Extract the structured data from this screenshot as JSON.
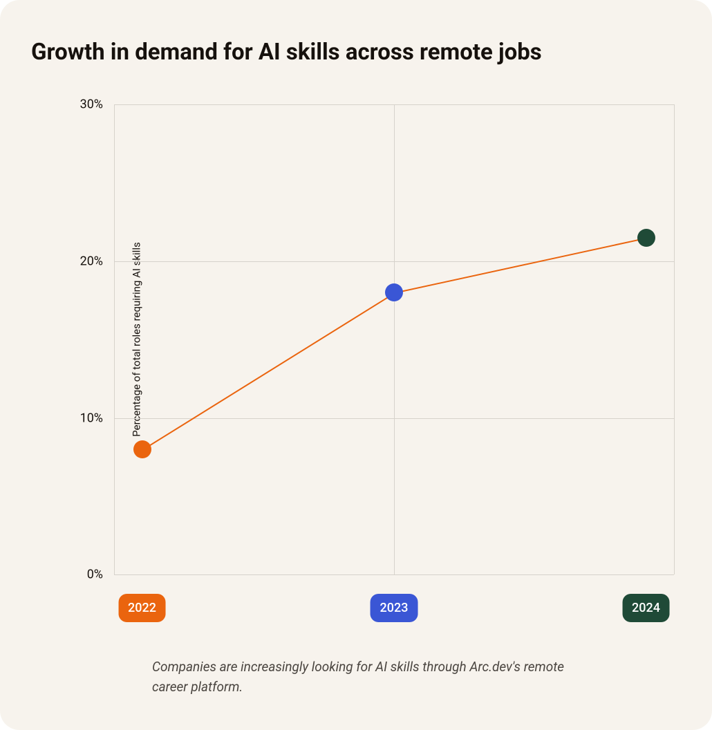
{
  "card": {
    "title": "Growth in demand for AI skills across remote jobs",
    "background_color": "#f7f3ed",
    "border_radius": 28
  },
  "chart": {
    "type": "line",
    "y_axis_label": "Percentage of total roles requiring AI skills",
    "ylim": [
      0,
      30
    ],
    "y_ticks": [
      {
        "value": 0,
        "label": "0%"
      },
      {
        "value": 10,
        "label": "10%"
      },
      {
        "value": 20,
        "label": "20%"
      },
      {
        "value": 30,
        "label": "30%"
      }
    ],
    "x_positions_pct": [
      5,
      50,
      95
    ],
    "grid_color": "#d6d2cb",
    "line_color": "#ea640e",
    "line_width": 2,
    "marker_radius": 13,
    "series": [
      {
        "x_label": "2022",
        "value": 8,
        "marker_color": "#ea640e",
        "label_bg": "#ea640e",
        "label_text_color": "#ffffff"
      },
      {
        "x_label": "2023",
        "value": 18,
        "marker_color": "#3a56d5",
        "label_bg": "#3a56d5",
        "label_text_color": "#ffffff"
      },
      {
        "x_label": "2024",
        "value": 21.5,
        "marker_color": "#1f4a37",
        "label_bg": "#1f4a37",
        "label_text_color": "#ffffff"
      }
    ],
    "y_tick_fontsize": 18,
    "x_label_fontsize": 18,
    "axis_label_fontsize": 15,
    "text_color": "#16110d"
  },
  "caption": {
    "text": "Companies are increasingly looking for AI skills through Arc.dev's remote career platform.",
    "font_style": "italic",
    "font_size": 19,
    "color": "#4a4540"
  }
}
